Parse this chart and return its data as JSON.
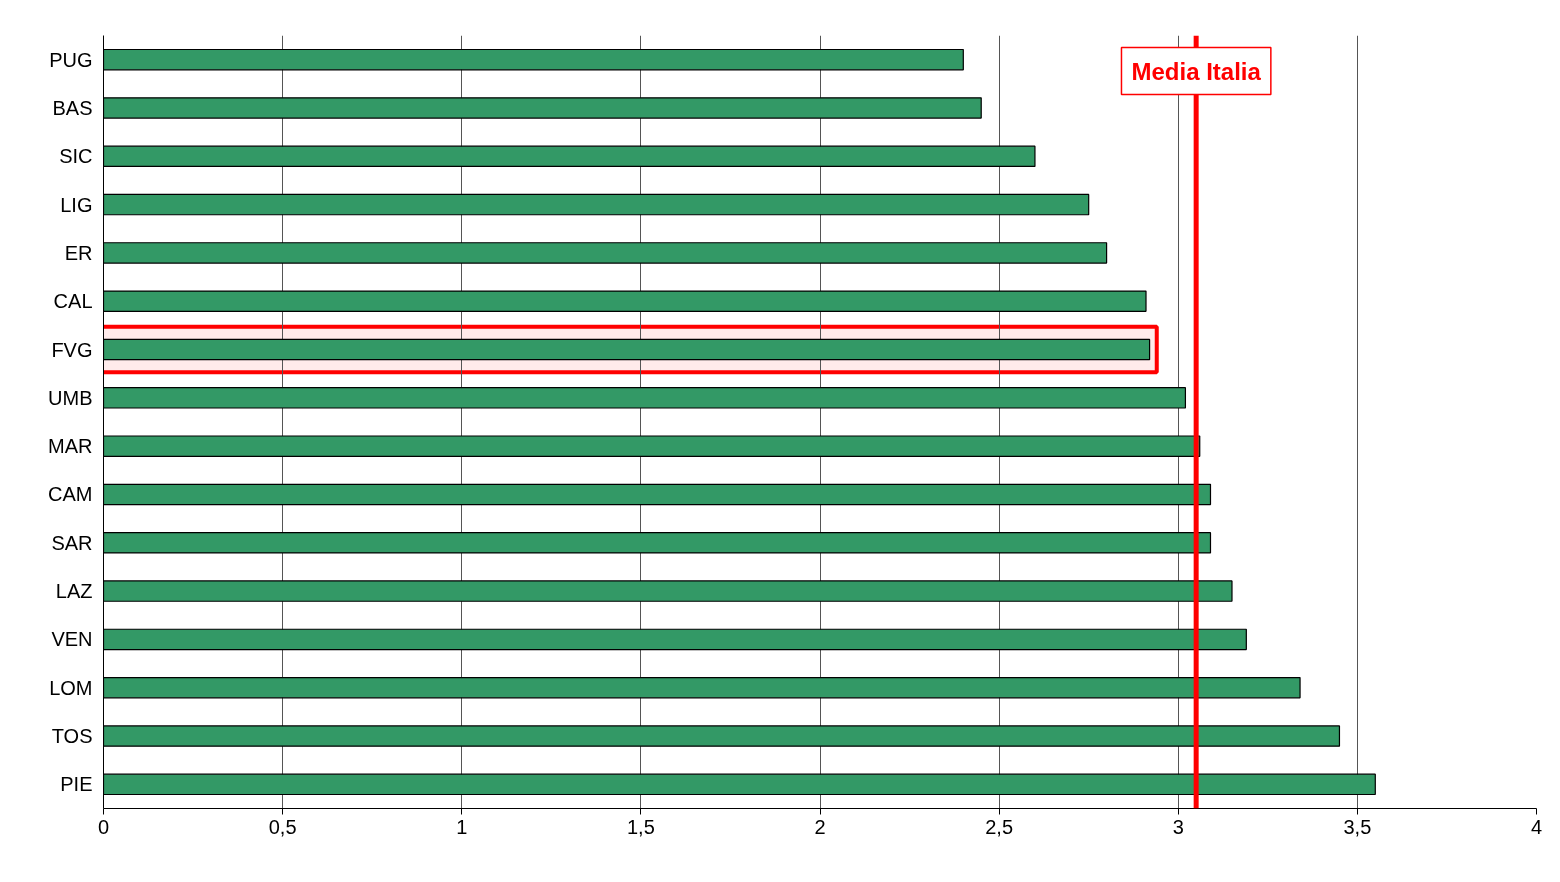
{
  "chart_data": {
    "type": "bar",
    "orientation": "horizontal",
    "categories": [
      "PUG",
      "BAS",
      "SIC",
      "LIG",
      "ER",
      "CAL",
      "FVG",
      "UMB",
      "MAR",
      "CAM",
      "SAR",
      "LAZ",
      "VEN",
      "LOM",
      "TOS",
      "PIE"
    ],
    "values": [
      2.4,
      2.45,
      2.6,
      2.75,
      2.8,
      2.91,
      2.92,
      3.02,
      3.06,
      3.09,
      3.09,
      3.15,
      3.19,
      3.34,
      3.45,
      3.55
    ],
    "color": "#339966",
    "xlim": [
      0,
      4
    ],
    "xticks": [
      0,
      {
        "value": 0.5,
        "label": "0,5"
      },
      1,
      {
        "value": 1.5,
        "label": "1,5"
      },
      2,
      {
        "value": 2.5,
        "label": "2,5"
      },
      3,
      {
        "value": 3.5,
        "label": "3,5"
      },
      4
    ],
    "grid": "x",
    "ref_lines": [
      {
        "axis": "x",
        "value": 3.05,
        "label": "Media Italia",
        "color": "#ff0000"
      }
    ],
    "bands": [
      {
        "axis": "y",
        "from": "FVG",
        "to": "FVG",
        "color": "#ff0000"
      }
    ]
  }
}
